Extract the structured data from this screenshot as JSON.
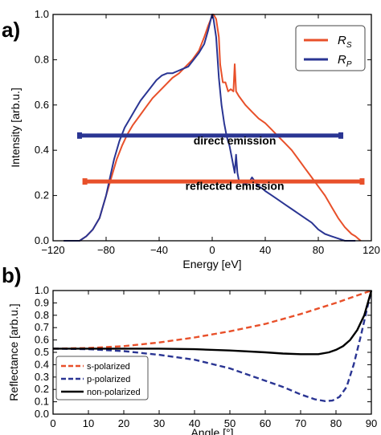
{
  "colors": {
    "rs": "#e8502a",
    "rp": "#2a3593",
    "s_pol": "#e8502a",
    "p_pol": "#2a3593",
    "non_pol": "#000000"
  },
  "chart_data": [
    {
      "panel_label": "a)",
      "type": "line",
      "xlabel": "Energy [eV]",
      "ylabel": "Intensity [arb.u.]",
      "xlim": [
        -120,
        120
      ],
      "ylim": [
        0,
        1.0
      ],
      "xticks": [
        -120,
        -80,
        -40,
        0,
        40,
        80,
        120
      ],
      "xtick_labels": [
        "−120",
        "−80",
        "−40",
        "0",
        "40",
        "80",
        "120"
      ],
      "yticks": [
        0.0,
        0.2,
        0.4,
        0.6,
        0.8,
        1.0
      ],
      "ytick_labels": [
        "0.0",
        "0.2",
        "0.4",
        "0.6",
        "0.8",
        "1.0"
      ],
      "legend_position": "top-right",
      "series": [
        {
          "name": "R_S",
          "legend_main": "R",
          "legend_sub": "S",
          "color": "#e8502a",
          "x": [
            -112,
            -100,
            -95,
            -90,
            -85,
            -80,
            -76,
            -72,
            -68,
            -64,
            -60,
            -55,
            -50,
            -45,
            -40,
            -35,
            -30,
            -25,
            -20,
            -15,
            -10,
            -6,
            -3,
            -1,
            0,
            1,
            3,
            5,
            6,
            8,
            10,
            12,
            14,
            16,
            17,
            18,
            19,
            20,
            25,
            30,
            35,
            40,
            45,
            50,
            55,
            60,
            65,
            70,
            75,
            80,
            85,
            90,
            95,
            100,
            105,
            108,
            110,
            112
          ],
          "y": [
            0.0,
            0.0,
            0.02,
            0.05,
            0.1,
            0.2,
            0.28,
            0.36,
            0.42,
            0.47,
            0.51,
            0.55,
            0.59,
            0.63,
            0.66,
            0.69,
            0.72,
            0.74,
            0.77,
            0.8,
            0.84,
            0.9,
            0.95,
            0.98,
            1.0,
            1.0,
            0.98,
            0.9,
            0.78,
            0.7,
            0.7,
            0.66,
            0.67,
            0.66,
            0.78,
            0.66,
            0.65,
            0.64,
            0.6,
            0.57,
            0.54,
            0.52,
            0.49,
            0.46,
            0.43,
            0.4,
            0.36,
            0.32,
            0.28,
            0.24,
            0.2,
            0.15,
            0.1,
            0.06,
            0.03,
            0.02,
            0.01,
            0.0
          ]
        },
        {
          "name": "R_P",
          "legend_main": "R",
          "legend_sub": "P",
          "color": "#2a3593",
          "x": [
            -112,
            -100,
            -95,
            -90,
            -85,
            -80,
            -77,
            -74,
            -70,
            -66,
            -62,
            -58,
            -54,
            -50,
            -46,
            -42,
            -38,
            -34,
            -30,
            -26,
            -22,
            -18,
            -14,
            -10,
            -6,
            -3,
            -1,
            0,
            1,
            3,
            5,
            7,
            9,
            11,
            13,
            15,
            17,
            18,
            19,
            20,
            22,
            25,
            28,
            30,
            35,
            38,
            40,
            45,
            50,
            55,
            60,
            65,
            70,
            75,
            80,
            85,
            90,
            95,
            100,
            105,
            108
          ],
          "y": [
            0.0,
            0.0,
            0.02,
            0.05,
            0.1,
            0.2,
            0.28,
            0.36,
            0.44,
            0.5,
            0.54,
            0.58,
            0.62,
            0.65,
            0.68,
            0.71,
            0.73,
            0.74,
            0.74,
            0.75,
            0.76,
            0.77,
            0.8,
            0.83,
            0.87,
            0.93,
            0.98,
            1.0,
            0.98,
            0.9,
            0.72,
            0.6,
            0.52,
            0.46,
            0.42,
            0.36,
            0.3,
            0.38,
            0.3,
            0.27,
            0.26,
            0.25,
            0.26,
            0.28,
            0.24,
            0.23,
            0.22,
            0.2,
            0.18,
            0.16,
            0.14,
            0.12,
            0.1,
            0.08,
            0.05,
            0.03,
            0.02,
            0.01,
            0.0,
            0.0,
            0.0
          ]
        }
      ],
      "annotations": [
        {
          "text": "direct emission",
          "color": "#2a3593",
          "y": 0.465,
          "x_from": -100,
          "x_to": 97,
          "label_x": 17,
          "label_y": 0.4
        },
        {
          "text": "reflected emission",
          "color": "#e8502a",
          "y": 0.262,
          "x_from": -96,
          "x_to": 113,
          "label_x": 17,
          "label_y": 0.2
        }
      ]
    },
    {
      "panel_label": "b)",
      "type": "line",
      "xlabel": "Angle [°]",
      "ylabel": "Reflectance [arb.u.]",
      "xlim": [
        0,
        90
      ],
      "ylim": [
        0.0,
        1.0
      ],
      "xticks": [
        0,
        10,
        20,
        30,
        40,
        50,
        60,
        70,
        80,
        90
      ],
      "xtick_labels": [
        "0",
        "10",
        "20",
        "30",
        "40",
        "50",
        "60",
        "70",
        "80",
        "90"
      ],
      "yticks": [
        0.0,
        0.1,
        0.2,
        0.3,
        0.4,
        0.5,
        0.6,
        0.7,
        0.8,
        0.9,
        1.0
      ],
      "ytick_labels": [
        "0.0",
        "0.1",
        "0.2",
        "0.3",
        "0.4",
        "0.5",
        "0.6",
        "0.7",
        "0.8",
        "0.9",
        "1.0"
      ],
      "legend_position": "bottom-left",
      "series": [
        {
          "name": "s-polarized",
          "style": "dashed",
          "color": "#e8502a",
          "x": [
            0,
            10,
            20,
            30,
            40,
            50,
            60,
            70,
            75,
            80,
            85,
            88,
            90
          ],
          "y": [
            0.53,
            0.535,
            0.55,
            0.58,
            0.62,
            0.67,
            0.73,
            0.81,
            0.855,
            0.9,
            0.95,
            0.98,
            1.0
          ]
        },
        {
          "name": "p-polarized",
          "style": "dashed",
          "color": "#2a3593",
          "x": [
            0,
            10,
            20,
            30,
            40,
            50,
            60,
            65,
            70,
            74,
            77,
            79,
            81,
            83,
            85,
            87,
            89,
            90
          ],
          "y": [
            0.53,
            0.525,
            0.51,
            0.48,
            0.44,
            0.37,
            0.27,
            0.22,
            0.16,
            0.12,
            0.105,
            0.11,
            0.14,
            0.22,
            0.4,
            0.63,
            0.88,
            1.0
          ]
        },
        {
          "name": "non-polarized",
          "style": "solid",
          "color": "#000000",
          "x": [
            0,
            10,
            20,
            30,
            40,
            50,
            60,
            65,
            70,
            75,
            78,
            80,
            82,
            84,
            86,
            88,
            89,
            90
          ],
          "y": [
            0.53,
            0.53,
            0.53,
            0.53,
            0.525,
            0.515,
            0.5,
            0.49,
            0.485,
            0.485,
            0.5,
            0.52,
            0.55,
            0.6,
            0.68,
            0.8,
            0.9,
            1.0
          ]
        }
      ]
    }
  ]
}
